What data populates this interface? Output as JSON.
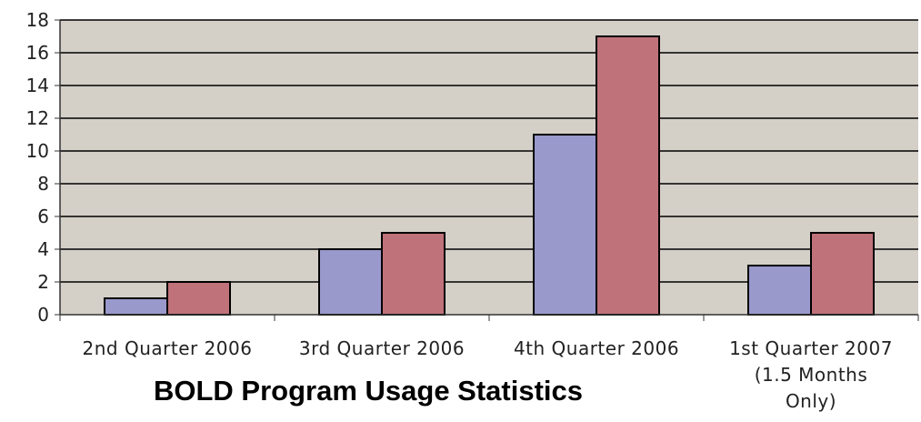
{
  "chart_data": {
    "type": "bar",
    "title": "BOLD Program Usage Statistics",
    "xlabel": "",
    "ylabel": "",
    "categories": [
      [
        "2nd Quarter 2006"
      ],
      [
        "3rd Quarter 2006"
      ],
      [
        "4th Quarter 2006"
      ],
      [
        "1st Quarter 2007",
        "(1.5 Months",
        "Only)"
      ]
    ],
    "series": [
      {
        "values": [
          1,
          4,
          11,
          3
        ],
        "color": "#9999cc"
      },
      {
        "values": [
          2,
          5,
          17,
          5
        ],
        "color": "#c0727a"
      }
    ],
    "ylim": [
      0,
      18
    ],
    "yticks": [
      0,
      2,
      4,
      6,
      8,
      10,
      12,
      14,
      16,
      18
    ],
    "grid": true,
    "legend": "none",
    "plot_background": "#d4d0c8"
  }
}
